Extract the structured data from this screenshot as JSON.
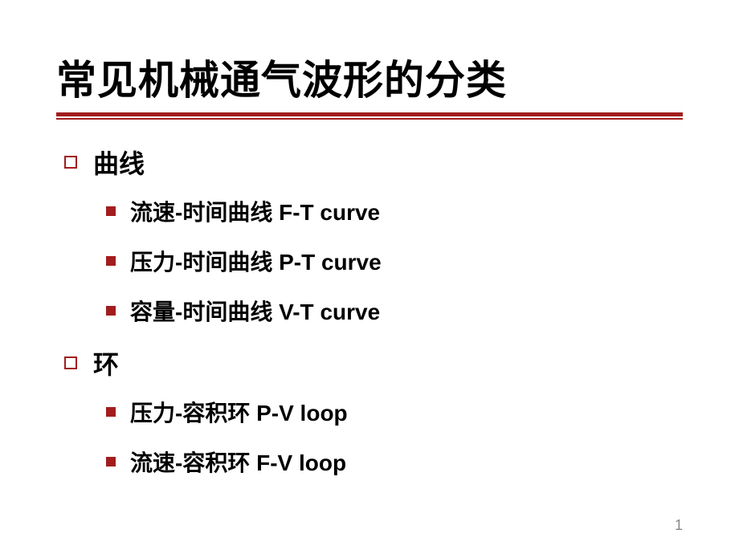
{
  "slide": {
    "title": "常见机械通气波形的分类",
    "title_color": "#000000",
    "title_fontsize": 50,
    "underline_color": "#a21d1d",
    "sections": [
      {
        "label": "曲线",
        "items": [
          {
            "text": "流速-时间曲线 F-T curve"
          },
          {
            "text": "压力-时间曲线 P-T curve"
          },
          {
            "text": "容量-时间曲线 V-T curve"
          }
        ]
      },
      {
        "label": "环",
        "items": [
          {
            "text": "压力-容积环 P-V loop"
          },
          {
            "text": "流速-容积环 F-V loop"
          }
        ]
      }
    ],
    "l1_bullet_color": "#a21d1d",
    "l2_bullet_color": "#a21d1d",
    "l1_fontsize": 32,
    "l2_fontsize": 28,
    "text_color": "#000000",
    "background_color": "#ffffff",
    "page_number": "1",
    "page_number_color": "#888888"
  }
}
